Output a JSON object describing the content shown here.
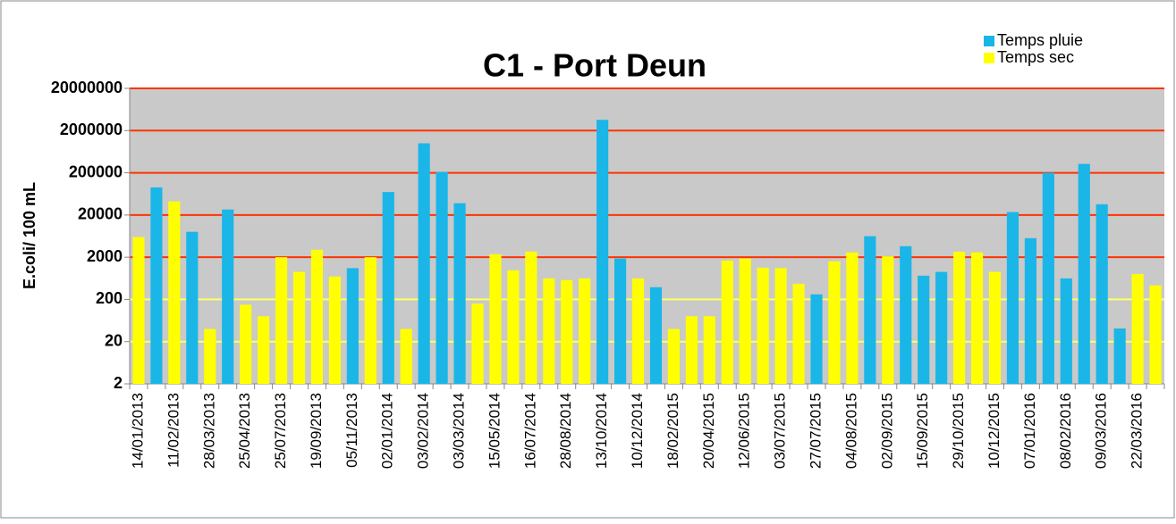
{
  "chart_data": {
    "type": "bar",
    "title": "C1 - Port Deun",
    "y_label": "E.coli/ 100 mL",
    "log_scale": true,
    "legend": "top-right",
    "grid": true,
    "grid_colors": [
      "#ffff66",
      "#ffff66",
      "#ffff66",
      "#ff3300",
      "#ff3300",
      "#ff3300",
      "#ff3300",
      "#ff3300"
    ],
    "categories": [
      "14/01/2013",
      null,
      "11/02/2013",
      null,
      "28/03/2013",
      null,
      "25/04/2013",
      null,
      "25/07/2013",
      null,
      "19/09/2013",
      null,
      "05/11/2013",
      null,
      "02/01/2014",
      null,
      "03/02/2014",
      null,
      "03/03/2014",
      null,
      "15/05/2014",
      null,
      "16/07/2014",
      null,
      "28/08/2014",
      null,
      "13/10/2014",
      null,
      "10/12/2014",
      null,
      "18/02/2015",
      null,
      "20/04/2015",
      null,
      "12/06/2015",
      null,
      "03/07/2015",
      null,
      "27/07/2015",
      null,
      "04/08/2015",
      null,
      "02/09/2015",
      null,
      "15/09/2015",
      null,
      "29/10/2015",
      null,
      "10/12/2015",
      null,
      "07/01/2016",
      null,
      "08/02/2016",
      null,
      "09/03/2016",
      null,
      "22/03/2016",
      null
    ],
    "series": [
      {
        "name": "Temps pluie",
        "color": "#1ab6e8",
        "values": [
          null,
          90000,
          null,
          8000,
          null,
          27000,
          null,
          null,
          null,
          null,
          null,
          null,
          1100,
          null,
          70000,
          null,
          1000000,
          210000,
          38000,
          null,
          null,
          null,
          null,
          null,
          null,
          null,
          3600000,
          1860,
          null,
          390,
          null,
          null,
          null,
          null,
          null,
          null,
          null,
          null,
          264,
          null,
          null,
          6300,
          null,
          3650,
          730,
          900,
          null,
          null,
          null,
          23500,
          5650,
          200000,
          630,
          325000,
          36000,
          41,
          null,
          null
        ]
      },
      {
        "name": "Temps sec",
        "color": "#ffff00",
        "values": [
          6000,
          null,
          42000,
          null,
          40,
          null,
          150,
          80,
          2000,
          900,
          3000,
          700,
          null,
          2000,
          null,
          40,
          null,
          null,
          null,
          160,
          2350,
          980,
          2740,
          630,
          575,
          630,
          null,
          null,
          630,
          null,
          40,
          80,
          80,
          1670,
          1860,
          1130,
          1100,
          470,
          null,
          1600,
          2600,
          null,
          2100,
          null,
          null,
          null,
          2700,
          2600,
          900,
          null,
          null,
          null,
          null,
          null,
          null,
          null,
          800,
          430
        ]
      }
    ],
    "ylim": [
      2,
      20000000
    ],
    "yticks": [
      2,
      20,
      200,
      2000,
      20000,
      200000,
      2000000,
      20000000
    ]
  }
}
